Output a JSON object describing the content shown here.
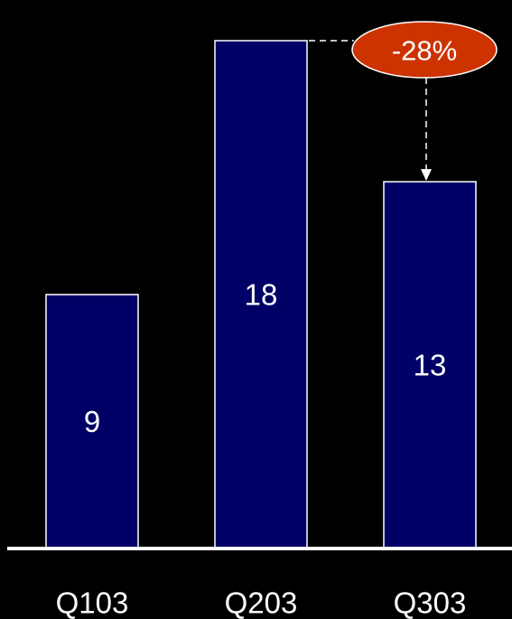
{
  "chart_data": {
    "type": "bar",
    "categories": [
      "Q103",
      "Q203",
      "Q303"
    ],
    "values": [
      9,
      18,
      13
    ],
    "value_labels": [
      "9",
      "18",
      "13"
    ],
    "title": "",
    "xlabel": "",
    "ylabel": "",
    "ylim": [
      0,
      19
    ],
    "grid": false,
    "legend": "none",
    "annotation": {
      "text": "-28%",
      "from_category": "Q203",
      "to_category": "Q303"
    }
  },
  "colors": {
    "background": "#000000",
    "bar_fill": "#000066",
    "bar_stroke": "#ffffff",
    "callout_fill": "#cc3300",
    "text": "#ffffff"
  }
}
